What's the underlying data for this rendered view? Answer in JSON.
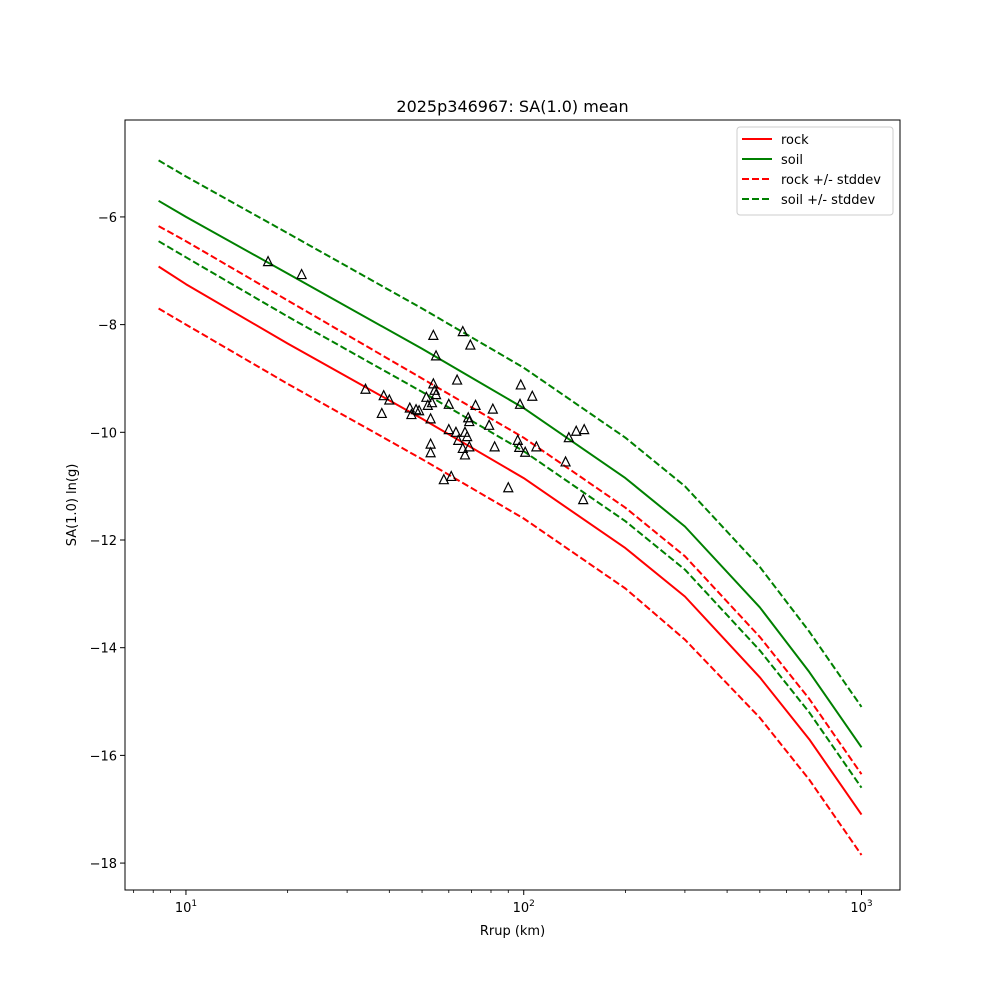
{
  "chart_data": {
    "type": "line",
    "title": "2025p346967: SA(1.0) mean",
    "xlabel": "Rrup (km)",
    "ylabel": "SA(1.0) ln(g)",
    "xscale": "log",
    "xlim": [
      6.6,
      1300
    ],
    "ylim": [
      -18.5,
      -4.2
    ],
    "x_ticks": [
      {
        "value": 10,
        "base": "10",
        "exp": "1"
      },
      {
        "value": 100,
        "base": "10",
        "exp": "2"
      },
      {
        "value": 1000,
        "base": "10",
        "exp": "3"
      }
    ],
    "y_ticks": [
      {
        "value": -6,
        "label": "−6"
      },
      {
        "value": -8,
        "label": "−8"
      },
      {
        "value": -10,
        "label": "−10"
      },
      {
        "value": -12,
        "label": "−12"
      },
      {
        "value": -14,
        "label": "−14"
      },
      {
        "value": -16,
        "label": "−16"
      },
      {
        "value": -18,
        "label": "−18"
      }
    ],
    "grid": false,
    "legend_position": "top-right",
    "series": [
      {
        "name": "rock",
        "color": "#ff0000",
        "style": "solid",
        "x": [
          8.3,
          10,
          20,
          50,
          100,
          200,
          300,
          500,
          700,
          1000
        ],
        "y": [
          -6.92,
          -7.25,
          -8.35,
          -9.75,
          -10.85,
          -12.15,
          -13.05,
          -14.55,
          -15.7,
          -17.1
        ]
      },
      {
        "name": "soil",
        "color": "#008000",
        "style": "solid",
        "x": [
          8.3,
          10,
          20,
          50,
          100,
          200,
          300,
          500,
          700,
          1000
        ],
        "y": [
          -5.7,
          -6.0,
          -7.05,
          -8.45,
          -9.55,
          -10.85,
          -11.75,
          -13.25,
          -14.45,
          -15.85
        ]
      },
      {
        "name": "rock +/- stddev",
        "color": "#ff0000",
        "style": "dashed",
        "x": [
          8.3,
          10,
          20,
          50,
          100,
          200,
          300,
          500,
          700,
          1000
        ],
        "y": [
          -6.17,
          -6.45,
          -7.55,
          -9.0,
          -10.1,
          -11.4,
          -12.3,
          -13.8,
          -14.95,
          -16.35
        ]
      },
      {
        "name": "",
        "color": "#ff0000",
        "style": "dashed",
        "x": [
          8.3,
          10,
          20,
          50,
          100,
          200,
          300,
          500,
          700,
          1000
        ],
        "y": [
          -7.7,
          -8.0,
          -9.1,
          -10.5,
          -11.6,
          -12.9,
          -13.85,
          -15.3,
          -16.45,
          -17.85
        ]
      },
      {
        "name": "soil +/- stddev",
        "color": "#008000",
        "style": "dashed",
        "x": [
          8.3,
          10,
          20,
          50,
          100,
          200,
          300,
          500,
          700,
          1000
        ],
        "y": [
          -4.95,
          -5.25,
          -6.3,
          -7.7,
          -8.8,
          -10.1,
          -11.0,
          -12.5,
          -13.7,
          -15.1
        ]
      },
      {
        "name": "",
        "color": "#008000",
        "style": "dashed",
        "x": [
          8.3,
          10,
          20,
          50,
          100,
          200,
          300,
          500,
          700,
          1000
        ],
        "y": [
          -6.45,
          -6.75,
          -7.85,
          -9.25,
          -10.35,
          -11.65,
          -12.55,
          -14.05,
          -15.2,
          -16.6
        ]
      }
    ],
    "observations": {
      "marker": "triangle",
      "color": "#000000",
      "points": [
        [
          17.5,
          -6.83
        ],
        [
          22.0,
          -7.07
        ],
        [
          34.0,
          -9.2
        ],
        [
          38.0,
          -9.65
        ],
        [
          38.5,
          -9.32
        ],
        [
          40.0,
          -9.4
        ],
        [
          46.0,
          -9.55
        ],
        [
          46.5,
          -9.67
        ],
        [
          48.0,
          -9.58
        ],
        [
          49.0,
          -9.6
        ],
        [
          51.5,
          -9.35
        ],
        [
          52.0,
          -9.5
        ],
        [
          53.0,
          -9.75
        ],
        [
          53.0,
          -10.22
        ],
        [
          53.0,
          -10.38
        ],
        [
          53.5,
          -9.45
        ],
        [
          54.0,
          -9.1
        ],
        [
          54.0,
          -8.2
        ],
        [
          54.5,
          -9.22
        ],
        [
          55.0,
          -9.3
        ],
        [
          55.0,
          -8.58
        ],
        [
          58.0,
          -10.88
        ],
        [
          60.0,
          -9.95
        ],
        [
          60.0,
          -9.48
        ],
        [
          61.0,
          -10.82
        ],
        [
          63.0,
          -10.0
        ],
        [
          63.5,
          -9.03
        ],
        [
          64.0,
          -10.15
        ],
        [
          66.0,
          -8.13
        ],
        [
          66.0,
          -10.3
        ],
        [
          67.0,
          -10.42
        ],
        [
          67.0,
          -10.0
        ],
        [
          68.0,
          -10.08
        ],
        [
          68.5,
          -9.73
        ],
        [
          69.0,
          -9.8
        ],
        [
          69.0,
          -10.27
        ],
        [
          69.5,
          -8.38
        ],
        [
          72.0,
          -9.5
        ],
        [
          79.0,
          -9.87
        ],
        [
          81.0,
          -9.57
        ],
        [
          82.0,
          -10.27
        ],
        [
          90.0,
          -11.03
        ],
        [
          96.0,
          -10.15
        ],
        [
          97.0,
          -10.28
        ],
        [
          97.5,
          -9.48
        ],
        [
          98.0,
          -9.12
        ],
        [
          101.0,
          -10.37
        ],
        [
          106.0,
          -9.33
        ],
        [
          109.0,
          -10.27
        ],
        [
          133.0,
          -10.55
        ],
        [
          136.0,
          -10.1
        ],
        [
          143.0,
          -9.98
        ],
        [
          150.0,
          -11.25
        ],
        [
          151.0,
          -9.95
        ]
      ]
    }
  }
}
